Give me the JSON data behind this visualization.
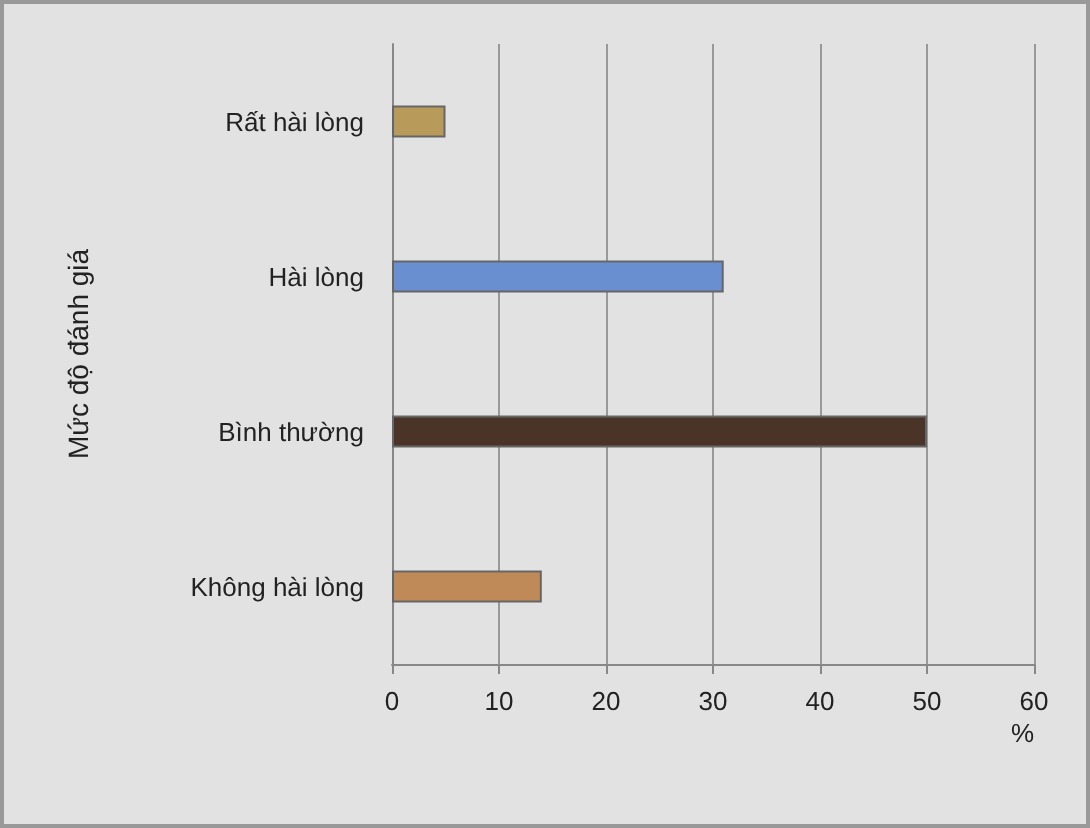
{
  "chart_data": {
    "type": "bar",
    "orientation": "horizontal",
    "xlabel": "%",
    "ylabel": "Mức độ đánh giá",
    "categories": [
      "Rất hài lòng",
      "Hài lòng",
      "Bình thường",
      "Không hài lòng"
    ],
    "values": [
      5,
      31,
      50,
      14
    ],
    "colors": [
      "#b89a5a",
      "#6a8fd0",
      "#4a3428",
      "#c08a58"
    ],
    "xlim": [
      0,
      60
    ],
    "xticks": [
      0,
      10,
      20,
      30,
      40,
      50,
      60
    ],
    "grid": "x"
  }
}
